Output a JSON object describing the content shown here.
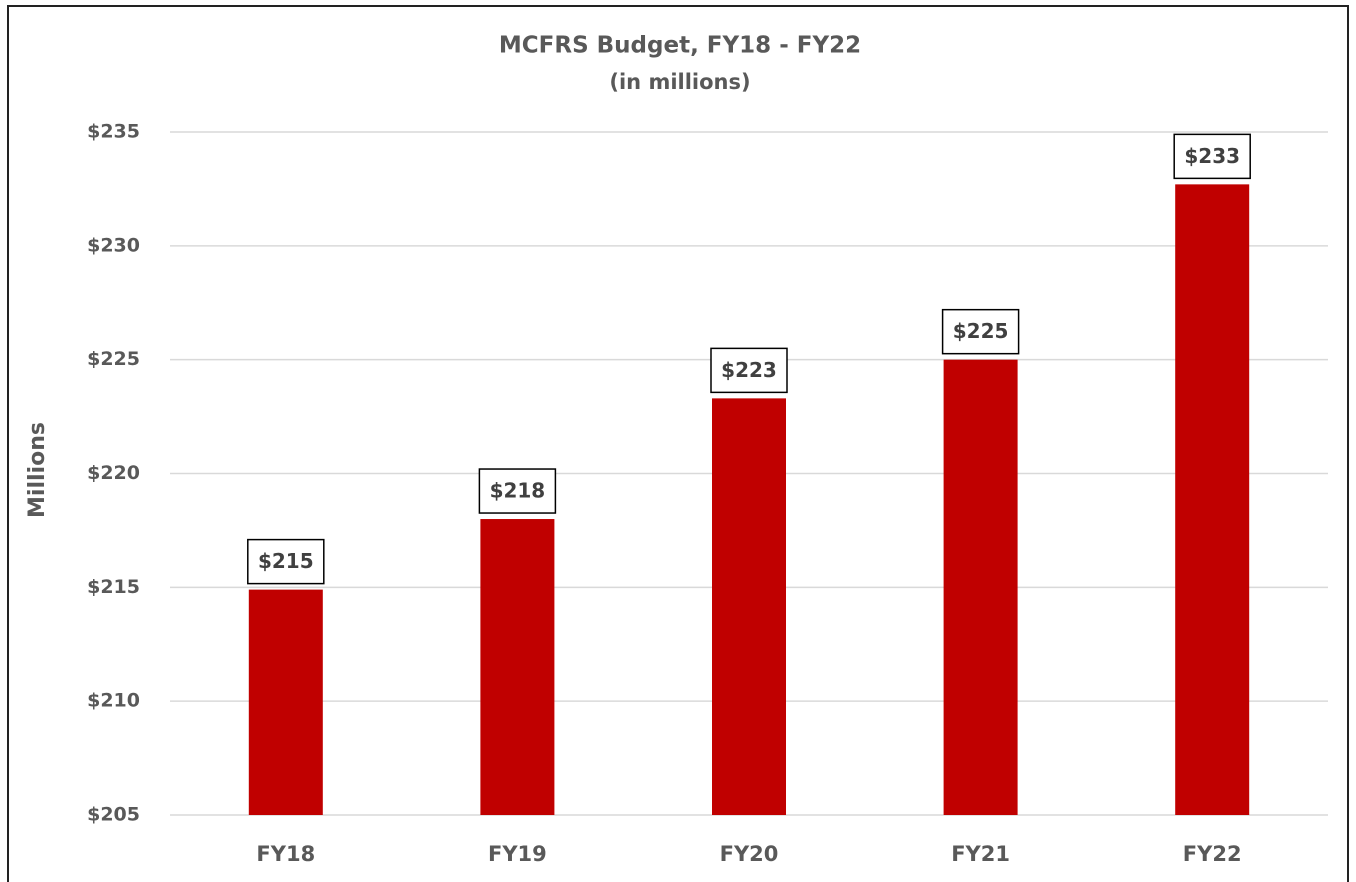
{
  "chart_data": {
    "type": "bar",
    "title": "MCFRS Budget, FY18 - FY22",
    "subtitle": "(in millions)",
    "y_label": "Millions",
    "categories": [
      "FY18",
      "FY19",
      "FY20",
      "FY21",
      "FY22"
    ],
    "values": [
      214.9,
      218.0,
      223.3,
      225.0,
      232.7
    ],
    "value_labels": [
      "$215",
      "$218",
      "$223",
      "$225",
      "$233"
    ],
    "color": "#c00000",
    "ylim": [
      205,
      235
    ],
    "yticks": [
      {
        "value": 205,
        "label": "$205"
      },
      {
        "value": 210,
        "label": "$210"
      },
      {
        "value": 215,
        "label": "$215"
      },
      {
        "value": 220,
        "label": "$220"
      },
      {
        "value": 225,
        "label": "$225"
      },
      {
        "value": 230,
        "label": "$230"
      },
      {
        "value": 235,
        "label": "$235"
      }
    ],
    "grid": true
  }
}
